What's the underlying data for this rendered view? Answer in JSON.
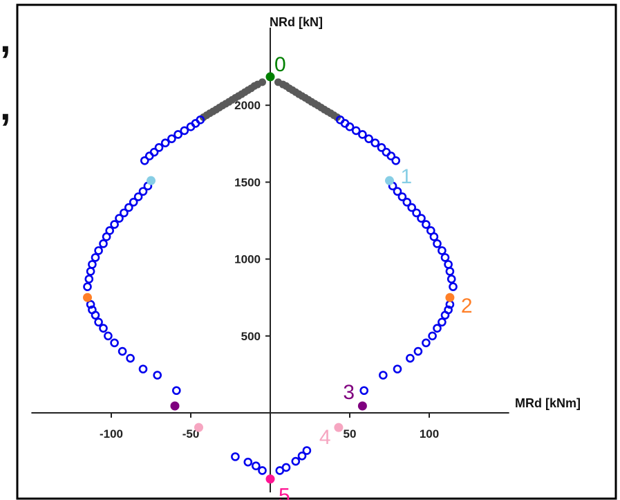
{
  "chart_data": {
    "type": "scatter",
    "title": "",
    "xlabel": "MRd [kNm]",
    "ylabel": "NRd [kN]",
    "xlim": [
      -152,
      152
    ],
    "ylim": [
      -480,
      2620
    ],
    "x_ticks": [
      {
        "value": -100,
        "label": "-100"
      },
      {
        "value": -50,
        "label": "-50"
      },
      {
        "value": 50,
        "label": "50"
      },
      {
        "value": 100,
        "label": "100"
      }
    ],
    "y_ticks": [
      {
        "value": 500,
        "label": "500"
      },
      {
        "value": 1000,
        "label": "1000"
      },
      {
        "value": 1500,
        "label": "1500"
      },
      {
        "value": 2000,
        "label": "2000"
      }
    ],
    "grid": false,
    "series": [
      {
        "color": "#5a5a5a",
        "marker": "filled-circle",
        "points": [
          [
            -5,
            2150
          ],
          [
            -8,
            2135
          ],
          [
            -10,
            2125
          ],
          [
            -12,
            2110
          ],
          [
            -14,
            2098
          ],
          [
            -16,
            2085
          ],
          [
            -18,
            2072
          ],
          [
            -20,
            2060
          ],
          [
            -22,
            2048
          ],
          [
            -24,
            2035
          ],
          [
            -26,
            2022
          ],
          [
            -28,
            2010
          ],
          [
            -30,
            1998
          ],
          [
            -32,
            1985
          ],
          [
            -34,
            1972
          ],
          [
            -36,
            1960
          ],
          [
            -38,
            1948
          ],
          [
            -40,
            1935
          ],
          [
            -42,
            1922
          ],
          [
            5,
            2150
          ],
          [
            8,
            2135
          ],
          [
            10,
            2125
          ],
          [
            12,
            2110
          ],
          [
            14,
            2098
          ],
          [
            16,
            2085
          ],
          [
            18,
            2072
          ],
          [
            20,
            2060
          ],
          [
            22,
            2048
          ],
          [
            24,
            2035
          ],
          [
            26,
            2022
          ],
          [
            28,
            2010
          ],
          [
            30,
            1998
          ],
          [
            32,
            1985
          ],
          [
            34,
            1972
          ],
          [
            36,
            1960
          ],
          [
            38,
            1948
          ],
          [
            40,
            1935
          ],
          [
            42,
            1922
          ]
        ]
      },
      {
        "color": "#0000ee",
        "marker": "open-circle",
        "points": [
          [
            -44,
            1905
          ],
          [
            -47,
            1882
          ],
          [
            -50,
            1860
          ],
          [
            -54,
            1835
          ],
          [
            -58,
            1810
          ],
          [
            -62,
            1782
          ],
          [
            -66,
            1755
          ],
          [
            -70,
            1725
          ],
          [
            -73,
            1695
          ],
          [
            -76,
            1670
          ],
          [
            -79,
            1640
          ],
          [
            -77,
            1475
          ],
          [
            -80,
            1440
          ],
          [
            -83,
            1405
          ],
          [
            -86,
            1370
          ],
          [
            -89,
            1335
          ],
          [
            -92,
            1300
          ],
          [
            -95,
            1265
          ],
          [
            -98,
            1225
          ],
          [
            -101,
            1185
          ],
          [
            -103,
            1145
          ],
          [
            -105,
            1100
          ],
          [
            -108,
            1055
          ],
          [
            -110,
            1010
          ],
          [
            -112,
            965
          ],
          [
            -113,
            920
          ],
          [
            -114,
            870
          ],
          [
            -115,
            820
          ],
          [
            -113,
            705
          ],
          [
            -112,
            670
          ],
          [
            -110,
            635
          ],
          [
            -108,
            590
          ],
          [
            -105,
            550
          ],
          [
            -102,
            500
          ],
          [
            -98,
            455
          ],
          [
            -93,
            400
          ],
          [
            -88,
            355
          ],
          [
            -80,
            285
          ],
          [
            -71,
            245
          ],
          [
            -59,
            145
          ],
          [
            44,
            1905
          ],
          [
            47,
            1882
          ],
          [
            50,
            1860
          ],
          [
            54,
            1835
          ],
          [
            58,
            1810
          ],
          [
            62,
            1782
          ],
          [
            66,
            1755
          ],
          [
            70,
            1725
          ],
          [
            73,
            1695
          ],
          [
            76,
            1670
          ],
          [
            79,
            1640
          ],
          [
            77,
            1475
          ],
          [
            80,
            1440
          ],
          [
            83,
            1405
          ],
          [
            86,
            1370
          ],
          [
            89,
            1335
          ],
          [
            92,
            1300
          ],
          [
            95,
            1265
          ],
          [
            98,
            1225
          ],
          [
            101,
            1185
          ],
          [
            103,
            1145
          ],
          [
            105,
            1100
          ],
          [
            108,
            1055
          ],
          [
            110,
            1010
          ],
          [
            112,
            965
          ],
          [
            113,
            920
          ],
          [
            114,
            870
          ],
          [
            115,
            820
          ],
          [
            113,
            705
          ],
          [
            112,
            670
          ],
          [
            110,
            635
          ],
          [
            108,
            590
          ],
          [
            105,
            550
          ],
          [
            102,
            500
          ],
          [
            98,
            455
          ],
          [
            93,
            400
          ],
          [
            88,
            355
          ],
          [
            80,
            285
          ],
          [
            71,
            245
          ],
          [
            59,
            145
          ],
          [
            -22,
            -285
          ],
          [
            -14,
            -320
          ],
          [
            -9,
            -345
          ],
          [
            -5,
            -375
          ],
          [
            6,
            -375
          ],
          [
            10,
            -355
          ],
          [
            16,
            -315
          ],
          [
            20,
            -280
          ],
          [
            23,
            -245
          ]
        ]
      }
    ],
    "key_points": [
      {
        "label": "0",
        "x": 0,
        "y": 2185,
        "color": "#008000"
      },
      {
        "label": "1",
        "x": 75,
        "y": 1510,
        "color": "#87cee5"
      },
      {
        "label": "2",
        "x": 113,
        "y": 750,
        "color": "#ff7f27"
      },
      {
        "label": "3",
        "x": 58,
        "y": 45,
        "color": "#7f007f"
      },
      {
        "label": "4",
        "x": 43,
        "y": -95,
        "color": "#f6a6c1"
      },
      {
        "label": "5",
        "x": 0,
        "y": -430,
        "color": "#ff1493"
      }
    ],
    "mirrored_key_points": [
      {
        "x": -75,
        "y": 1510,
        "color": "#87cee5"
      },
      {
        "x": -115,
        "y": 750,
        "color": "#ff7f27"
      },
      {
        "x": -60,
        "y": 45,
        "color": "#7f007f"
      },
      {
        "x": -45,
        "y": -95,
        "color": "#f6a6c1"
      }
    ]
  },
  "left_margin_marks": [
    ",",
    ","
  ]
}
